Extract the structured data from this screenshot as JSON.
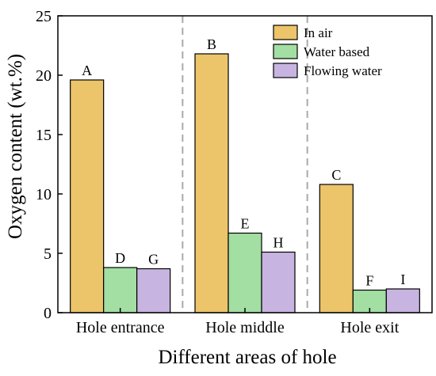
{
  "chart_data": {
    "type": "bar",
    "xlabel": "Different areas of hole",
    "ylabel": "Oxygen content (wt.%)",
    "ylim": [
      0,
      25
    ],
    "yticks": [
      0,
      5,
      10,
      15,
      20,
      25
    ],
    "grid": false,
    "legend_position": "top-right",
    "categories": [
      "Hole entrance",
      "Hole middle",
      "Hole exit"
    ],
    "series": [
      {
        "name": "In air",
        "color": "#ecc46a",
        "values": [
          19.6,
          21.8,
          10.8
        ],
        "labels": [
          "A",
          "B",
          "C"
        ]
      },
      {
        "name": "Water based",
        "color": "#a3dea3",
        "values": [
          3.8,
          6.7,
          1.9
        ],
        "labels": [
          "D",
          "E",
          "F"
        ]
      },
      {
        "name": "Flowing water",
        "color": "#c8b4e1",
        "values": [
          3.7,
          5.1,
          2.0
        ],
        "labels": [
          "G",
          "H",
          "I"
        ]
      }
    ],
    "separator_lines": "dashed between categories"
  }
}
